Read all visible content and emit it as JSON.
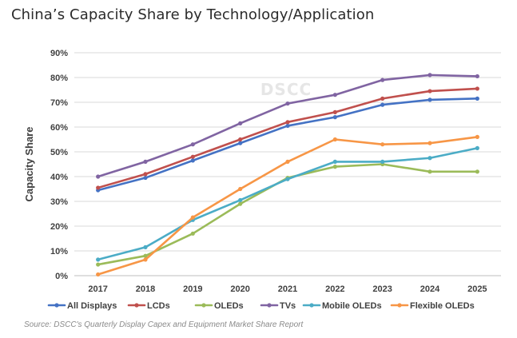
{
  "title": "China’s Capacity Share by Technology/Application",
  "watermark": "DSCC",
  "source": "Source: DSCC's Quarterly Display Capex and Equipment Market Share Report",
  "chart_data": {
    "type": "line",
    "ylabel": "Capacity Share",
    "xlabel": "",
    "ylim": [
      0,
      90
    ],
    "yticks": [
      "0%",
      "10%",
      "20%",
      "30%",
      "40%",
      "50%",
      "60%",
      "70%",
      "80%",
      "90%"
    ],
    "grid": true,
    "legend_position": "bottom",
    "x": [
      "2017",
      "2018",
      "2019",
      "2020",
      "2021",
      "2022",
      "2023",
      "2024",
      "2025"
    ],
    "series": [
      {
        "name": "All Displays",
        "color": "#4472C4",
        "values": [
          34.5,
          39.5,
          46.5,
          53.5,
          60.5,
          64,
          69,
          71,
          71.5
        ]
      },
      {
        "name": "LCDs",
        "color": "#C0504D",
        "values": [
          35.5,
          41,
          48,
          55,
          62,
          66,
          71.5,
          74.5,
          75.5
        ]
      },
      {
        "name": "OLEDs",
        "color": "#9BBB59",
        "values": [
          4.5,
          8,
          17,
          29,
          39.5,
          44,
          45,
          42,
          42
        ]
      },
      {
        "name": "TVs",
        "color": "#8064A2",
        "values": [
          40,
          46,
          53,
          61.5,
          69.5,
          73,
          79,
          81,
          80.5
        ]
      },
      {
        "name": "Mobile OLEDs",
        "color": "#4BACC6",
        "values": [
          6.5,
          11.5,
          22.5,
          30.5,
          39,
          46,
          46,
          47.5,
          51.5
        ]
      },
      {
        "name": "Flexible OLEDs",
        "color": "#F79646",
        "values": [
          0.5,
          6.5,
          23.5,
          35,
          46,
          55,
          53,
          53.5,
          56
        ]
      }
    ]
  }
}
